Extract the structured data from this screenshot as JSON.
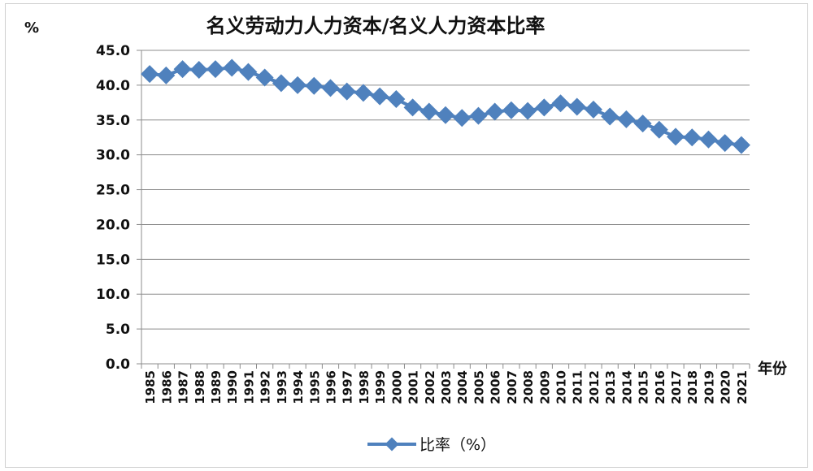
{
  "chart_data": {
    "type": "line",
    "title": "名义劳动力人力资本/名义人力资本比率",
    "ylabel": "%",
    "xlabel": "年份",
    "ylim": [
      0,
      45
    ],
    "yticks": [
      "0.0",
      "5.0",
      "10.0",
      "15.0",
      "20.0",
      "25.0",
      "30.0",
      "35.0",
      "40.0",
      "45.0"
    ],
    "categories": [
      "1985",
      "1986",
      "1987",
      "1988",
      "1989",
      "1990",
      "1991",
      "1992",
      "1993",
      "1994",
      "1995",
      "1996",
      "1997",
      "1998",
      "1999",
      "2000",
      "2001",
      "2002",
      "2003",
      "2004",
      "2005",
      "2006",
      "2007",
      "2008",
      "2009",
      "2010",
      "2011",
      "2012",
      "2013",
      "2014",
      "2015",
      "2016",
      "2017",
      "2018",
      "2019",
      "2020",
      "2021"
    ],
    "series": [
      {
        "name": "比率（%）",
        "color": "#4f81bd",
        "marker": "diamond",
        "values": [
          41.6,
          41.4,
          42.3,
          42.2,
          42.3,
          42.5,
          41.9,
          41.1,
          40.3,
          40.0,
          39.9,
          39.6,
          39.1,
          38.9,
          38.4,
          38.0,
          36.8,
          36.2,
          35.7,
          35.3,
          35.6,
          36.2,
          36.4,
          36.3,
          36.8,
          37.4,
          36.9,
          36.5,
          35.5,
          35.1,
          34.5,
          33.6,
          32.6,
          32.5,
          32.2,
          31.7,
          31.4
        ]
      }
    ],
    "grid": true,
    "legend": "bottom"
  }
}
